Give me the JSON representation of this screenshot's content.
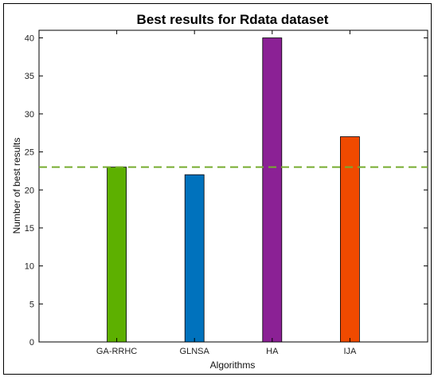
{
  "chart_data": {
    "type": "bar",
    "title": "Best results for Rdata dataset",
    "xlabel": "Algorithms",
    "ylabel": "Number of best results",
    "categories": [
      "GA-RRHC",
      "GLNSA",
      "HA",
      "IJA"
    ],
    "values": [
      23,
      22,
      40,
      27
    ],
    "colors": [
      "#5db000",
      "#0072bd",
      "#8b2195",
      "#f04a00"
    ],
    "ylim": [
      0,
      41
    ],
    "yticks": [
      0,
      5,
      10,
      15,
      20,
      25,
      30,
      35,
      40
    ],
    "xlim": [
      0,
      5
    ],
    "reference_line": {
      "value": 23,
      "color": "#77ac30",
      "style": "dashed"
    },
    "grid": false
  }
}
